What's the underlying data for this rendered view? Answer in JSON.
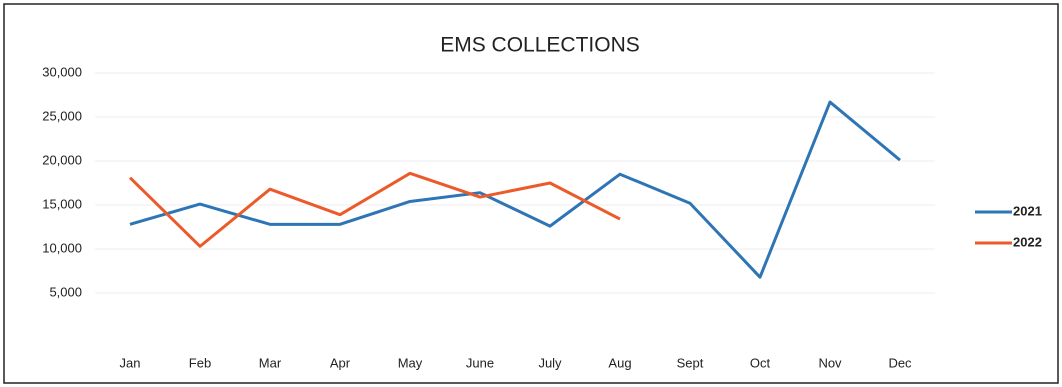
{
  "chart_data": {
    "type": "line",
    "title": "EMS COLLECTIONS",
    "categories": [
      "Jan",
      "Feb",
      "Mar",
      "Apr",
      "May",
      "June",
      "July",
      "Aug",
      "Sept",
      "Oct",
      "Nov",
      "Dec"
    ],
    "series": [
      {
        "name": "2021",
        "color": "#2e75b6",
        "values": [
          12800,
          15100,
          12800,
          12800,
          15400,
          16400,
          12600,
          18500,
          15200,
          6800,
          26700,
          20100
        ]
      },
      {
        "name": "2022",
        "color": "#ed5a2a",
        "values": [
          18100,
          10300,
          16800,
          13900,
          18600,
          15900,
          17500,
          13400,
          null,
          null,
          null,
          null
        ]
      }
    ],
    "ylim": [
      0,
      30000
    ],
    "yticks": [
      {
        "value": 5000,
        "label": "5,000"
      },
      {
        "value": 10000,
        "label": "10,000"
      },
      {
        "value": 15000,
        "label": "15,000"
      },
      {
        "value": 20000,
        "label": "20,000"
      },
      {
        "value": 25000,
        "label": "25,000"
      },
      {
        "value": 30000,
        "label": "30,000"
      }
    ],
    "grid": true,
    "legend": "right"
  }
}
